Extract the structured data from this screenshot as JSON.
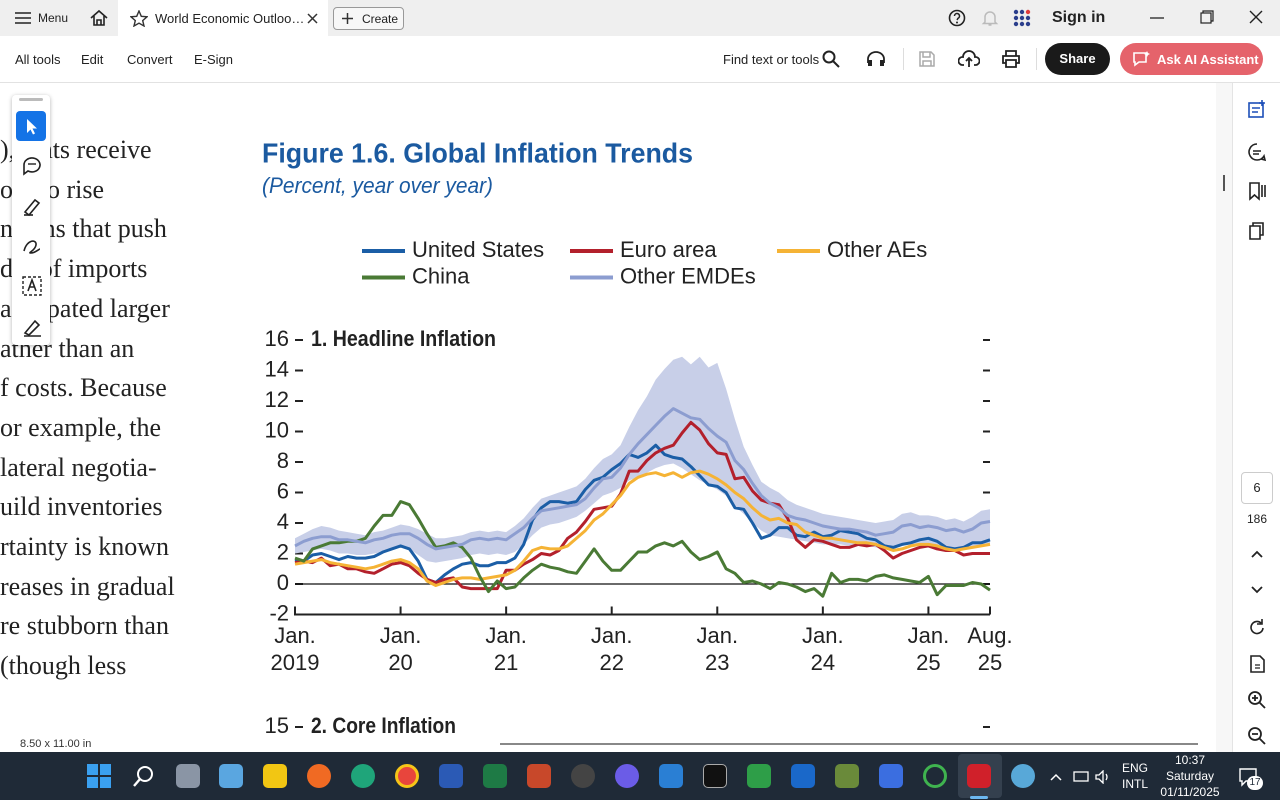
{
  "title_bar": {
    "menu": "Menu",
    "tab": "World Economic Outloo…",
    "create": "Create",
    "sign_in": "Sign in"
  },
  "toolbar": {
    "items": [
      "All tools",
      "Edit",
      "Convert",
      "E-Sign"
    ],
    "find": "Find text or tools",
    "share": "Share",
    "ai": "Ask AI Assistant"
  },
  "document": {
    "body_lines": [
      "),  ents receive",
      "oi   to rise",
      "ns   ns that push",
      "di   of imports",
      "ar   ipated larger",
      "ather than an",
      "f costs. Because",
      "or example, the",
      "lateral negotia-",
      "uild inventories",
      "rtainty is known",
      "reases in gradual",
      "re stubborn than",
      "(though less"
    ],
    "page_size": "8.50 x 11.00 in"
  },
  "chart_data": {
    "type": "line",
    "title": "Figure 1.6.  Global Inflation Trends",
    "subtitle": "(Percent, year over year)",
    "panel_title": "1. Headline Inflation",
    "categories": [
      "Jan. 2019",
      null,
      null,
      null,
      null,
      null,
      null,
      null,
      null,
      null,
      null,
      null,
      "Jan. 20",
      null,
      null,
      null,
      null,
      null,
      null,
      null,
      null,
      null,
      null,
      null,
      "Jan. 21",
      null,
      null,
      null,
      null,
      null,
      null,
      null,
      null,
      null,
      null,
      null,
      "Jan. 22",
      null,
      null,
      null,
      null,
      null,
      null,
      null,
      null,
      null,
      null,
      null,
      "Jan. 23",
      null,
      null,
      null,
      null,
      null,
      null,
      null,
      null,
      null,
      null,
      null,
      "Jan. 24",
      null,
      null,
      null,
      null,
      null,
      null,
      null,
      null,
      null,
      null,
      null,
      "Jan. 25",
      null,
      null,
      null,
      null,
      null,
      null,
      "Aug. 25"
    ],
    "band": {
      "color": "#c8cfe8",
      "lower": [
        2.0,
        2.1,
        2.2,
        2.3,
        2.2,
        2.0,
        2.0,
        1.9,
        1.9,
        2.0,
        2.1,
        2.3,
        2.4,
        2.3,
        1.9,
        1.5,
        1.4,
        1.5,
        1.6,
        1.7,
        1.9,
        2.0,
        1.9,
        2.0,
        1.9,
        2.1,
        2.6,
        3.2,
        3.7,
        3.9,
        4.0,
        4.2,
        4.4,
        4.8,
        5.3,
        5.8,
        6.0,
        6.3,
        6.8,
        7.0,
        7.3,
        7.6,
        7.8,
        7.9,
        7.6,
        7.2,
        6.8,
        6.5,
        6.2,
        5.8,
        5.1,
        4.6,
        4.0,
        3.5,
        3.2,
        3.1,
        3.0,
        2.9,
        2.8,
        2.7,
        2.6,
        2.6,
        2.6,
        2.5,
        2.5,
        2.5,
        2.4,
        2.3,
        2.3,
        2.5,
        2.6,
        2.5,
        2.5,
        2.4,
        2.3,
        2.3,
        2.3,
        2.4,
        2.6,
        2.6
      ],
      "upper": [
        3.0,
        3.3,
        3.6,
        3.8,
        3.7,
        3.5,
        3.4,
        3.3,
        3.2,
        3.4,
        3.5,
        3.7,
        3.9,
        3.8,
        3.6,
        3.3,
        3.0,
        3.0,
        3.1,
        3.2,
        3.4,
        3.5,
        3.4,
        3.5,
        3.4,
        3.8,
        4.3,
        5.0,
        5.6,
        5.8,
        6.0,
        6.2,
        6.4,
        6.9,
        7.6,
        8.2,
        8.5,
        9.1,
        10.3,
        11.4,
        12.3,
        13.4,
        14.1,
        14.7,
        14.9,
        14.4,
        14.9,
        14.2,
        14.5,
        12.8,
        10.8,
        9.0,
        7.8,
        6.7,
        6.3,
        6.0,
        5.5,
        5.2,
        5.0,
        4.8,
        4.6,
        4.5,
        4.4,
        4.3,
        4.2,
        4.1,
        4.0,
        4.1,
        4.2,
        4.6,
        4.7,
        4.5,
        4.5,
        4.4,
        4.2,
        4.3,
        4.1,
        4.4,
        4.8,
        4.9
      ]
    },
    "series": [
      {
        "name": "United States",
        "color": "#1b5ea6",
        "values": [
          1.6,
          1.5,
          1.9,
          2.0,
          1.8,
          1.6,
          1.8,
          1.7,
          1.7,
          1.8,
          2.1,
          2.3,
          2.5,
          2.3,
          1.5,
          0.3,
          0.1,
          0.6,
          1.0,
          1.3,
          1.4,
          1.2,
          1.2,
          1.4,
          1.4,
          1.7,
          2.6,
          4.2,
          5.0,
          5.4,
          5.4,
          5.3,
          5.4,
          6.2,
          6.8,
          7.0,
          7.5,
          7.9,
          8.5,
          8.3,
          8.6,
          9.1,
          8.5,
          8.3,
          8.2,
          7.7,
          7.1,
          6.5,
          6.4,
          6.0,
          5.0,
          4.9,
          4.0,
          3.0,
          3.2,
          3.7,
          3.7,
          3.2,
          3.1,
          3.4,
          3.1,
          3.2,
          3.5,
          3.4,
          3.3,
          3.0,
          2.9,
          2.5,
          2.4,
          2.6,
          2.7,
          2.9,
          3.0,
          2.8,
          2.4,
          2.3,
          2.4,
          2.7,
          2.7,
          2.9
        ]
      },
      {
        "name": "Euro area",
        "color": "#b3202c",
        "values": [
          1.4,
          1.5,
          1.4,
          1.7,
          1.2,
          1.3,
          1.0,
          1.0,
          0.8,
          0.7,
          1.0,
          1.3,
          1.4,
          1.2,
          0.7,
          0.3,
          0.1,
          0.3,
          0.4,
          -0.2,
          -0.3,
          -0.3,
          -0.3,
          -0.3,
          0.9,
          0.9,
          1.3,
          1.6,
          2.0,
          1.9,
          2.2,
          3.0,
          3.4,
          4.1,
          4.9,
          5.0,
          5.1,
          5.9,
          7.4,
          7.4,
          8.1,
          8.6,
          8.9,
          9.1,
          9.9,
          10.6,
          10.1,
          9.2,
          8.6,
          8.5,
          6.9,
          7.0,
          6.1,
          5.5,
          5.3,
          5.2,
          4.3,
          2.9,
          2.4,
          2.9,
          2.8,
          2.6,
          2.4,
          2.4,
          2.6,
          2.5,
          2.6,
          2.2,
          1.7,
          2.0,
          2.2,
          2.4,
          2.5,
          2.3,
          2.2,
          2.2,
          1.9,
          2.0,
          2.0,
          2.0
        ]
      },
      {
        "name": "Other AEs",
        "color": "#f5b335",
        "values": [
          1.3,
          1.4,
          1.5,
          1.6,
          1.4,
          1.3,
          1.2,
          1.1,
          1.0,
          1.1,
          1.3,
          1.5,
          1.6,
          1.4,
          1.0,
          0.2,
          -0.1,
          0.1,
          0.3,
          0.4,
          0.4,
          0.3,
          0.4,
          0.5,
          0.6,
          0.9,
          1.5,
          2.2,
          2.4,
          2.3,
          2.3,
          2.5,
          3.0,
          3.5,
          4.2,
          4.6,
          5.2,
          5.8,
          6.6,
          7.0,
          7.2,
          7.3,
          7.1,
          7.3,
          7.0,
          7.3,
          7.4,
          7.2,
          6.9,
          6.5,
          6.0,
          5.6,
          5.0,
          4.5,
          4.2,
          4.3,
          4.0,
          3.9,
          3.4,
          3.2,
          3.0,
          3.0,
          2.9,
          2.8,
          2.7,
          2.7,
          2.6,
          2.4,
          2.2,
          2.3,
          2.5,
          2.6,
          2.6,
          2.5,
          2.3,
          2.2,
          2.3,
          2.4,
          2.5,
          2.6
        ]
      },
      {
        "name": "China",
        "color": "#4a7a35",
        "values": [
          1.7,
          1.5,
          2.3,
          2.5,
          2.7,
          2.7,
          2.8,
          2.8,
          3.0,
          3.8,
          4.5,
          4.5,
          5.4,
          5.2,
          4.3,
          3.3,
          2.4,
          2.5,
          2.7,
          2.4,
          1.7,
          0.5,
          -0.5,
          0.2,
          -0.3,
          -0.2,
          0.4,
          0.9,
          1.3,
          1.1,
          1.0,
          0.8,
          0.7,
          1.5,
          2.3,
          1.5,
          0.9,
          0.9,
          1.5,
          2.1,
          2.1,
          2.5,
          2.7,
          2.5,
          2.8,
          2.1,
          1.6,
          1.8,
          2.1,
          1.0,
          0.7,
          0.1,
          0.2,
          0.0,
          -0.3,
          0.1,
          0.0,
          -0.2,
          -0.5,
          -0.3,
          -0.8,
          0.7,
          0.1,
          0.3,
          0.3,
          0.2,
          0.5,
          0.6,
          0.4,
          0.3,
          0.2,
          0.1,
          0.5,
          -0.7,
          -0.1,
          -0.1,
          -0.1,
          0.1,
          0.0,
          -0.4
        ]
      },
      {
        "name": "Other EMDEs",
        "color": "#8c9dd0",
        "values": [
          2.5,
          2.8,
          3.0,
          3.1,
          3.1,
          2.9,
          2.9,
          2.8,
          2.7,
          2.9,
          3.0,
          3.2,
          3.3,
          3.3,
          3.0,
          2.6,
          2.3,
          2.4,
          2.5,
          2.6,
          2.9,
          3.0,
          2.9,
          3.0,
          2.9,
          3.3,
          3.7,
          4.3,
          4.8,
          4.9,
          5.0,
          5.1,
          5.2,
          5.6,
          6.3,
          6.9,
          7.0,
          7.6,
          8.5,
          9.2,
          9.8,
          10.4,
          11.0,
          11.5,
          11.2,
          10.9,
          10.8,
          10.2,
          9.7,
          9.3,
          8.1,
          7.5,
          6.6,
          5.8,
          5.3,
          5.0,
          4.5,
          4.3,
          4.2,
          4.0,
          3.8,
          3.7,
          3.6,
          3.6,
          3.5,
          3.4,
          3.2,
          3.3,
          3.4,
          3.8,
          3.9,
          3.7,
          3.8,
          3.7,
          3.5,
          3.6,
          3.4,
          3.6,
          4.0,
          4.1
        ]
      }
    ],
    "ylim": [
      -2,
      16
    ],
    "yticks": [
      -2,
      0,
      2,
      4,
      6,
      8,
      10,
      12,
      14,
      16
    ]
  },
  "next_panel": {
    "title": "2. Core Inflation",
    "top_tick": 15
  },
  "sidebar": {
    "page": "6",
    "pages": "186"
  },
  "taskbar": {
    "lang": "ENG",
    "layout": "INTL",
    "time": "10:37",
    "day": "Saturday",
    "date": "01/11/2025",
    "notifications": "17"
  }
}
